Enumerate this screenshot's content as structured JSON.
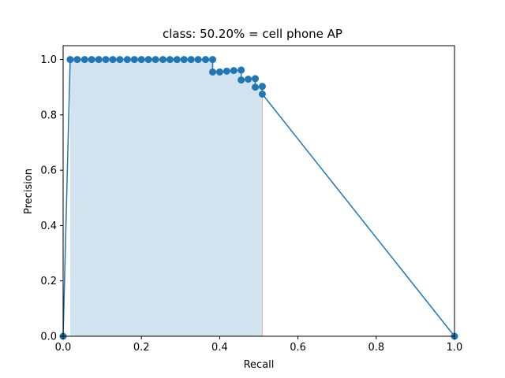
{
  "chart_data": {
    "type": "line",
    "title": "class: 50.20% = cell phone AP",
    "xlabel": "Recall",
    "ylabel": "Precision",
    "xlim": [
      0.0,
      1.0
    ],
    "ylim": [
      0.0,
      1.05
    ],
    "xticks": [
      "0.0",
      "0.2",
      "0.4",
      "0.6",
      "0.8",
      "1.0"
    ],
    "yticks": [
      "0.0",
      "0.2",
      "0.4",
      "0.6",
      "0.8",
      "1.0"
    ],
    "grid": false,
    "colors": {
      "line": "#1f77b4",
      "fill": "#1f77b4",
      "fill_edge": "#e8b0b0"
    },
    "series": [
      {
        "x": [
          0.0,
          0.018,
          0.036,
          0.055,
          0.073,
          0.091,
          0.109,
          0.127,
          0.145,
          0.164,
          0.182,
          0.2,
          0.218,
          0.236,
          0.255,
          0.273,
          0.291,
          0.309,
          0.327,
          0.345,
          0.364,
          0.382,
          0.382,
          0.4,
          0.418,
          0.436,
          0.455,
          0.455,
          0.473,
          0.491,
          0.491,
          0.509,
          0.509,
          1.0
        ],
        "y": [
          0.0,
          1.0,
          1.0,
          1.0,
          1.0,
          1.0,
          1.0,
          1.0,
          1.0,
          1.0,
          1.0,
          1.0,
          1.0,
          1.0,
          1.0,
          1.0,
          1.0,
          1.0,
          1.0,
          1.0,
          1.0,
          1.0,
          0.955,
          0.955,
          0.958,
          0.96,
          0.962,
          0.926,
          0.929,
          0.931,
          0.9,
          0.903,
          0.875,
          0.0
        ]
      }
    ],
    "area": {
      "x": [
        0.018,
        0.382,
        0.382,
        0.436,
        0.436,
        0.455,
        0.455,
        0.491,
        0.491,
        0.509,
        0.509
      ],
      "y": [
        1.0,
        1.0,
        0.962,
        0.962,
        0.962,
        0.962,
        0.931,
        0.931,
        0.903,
        0.903,
        0.875
      ]
    }
  }
}
